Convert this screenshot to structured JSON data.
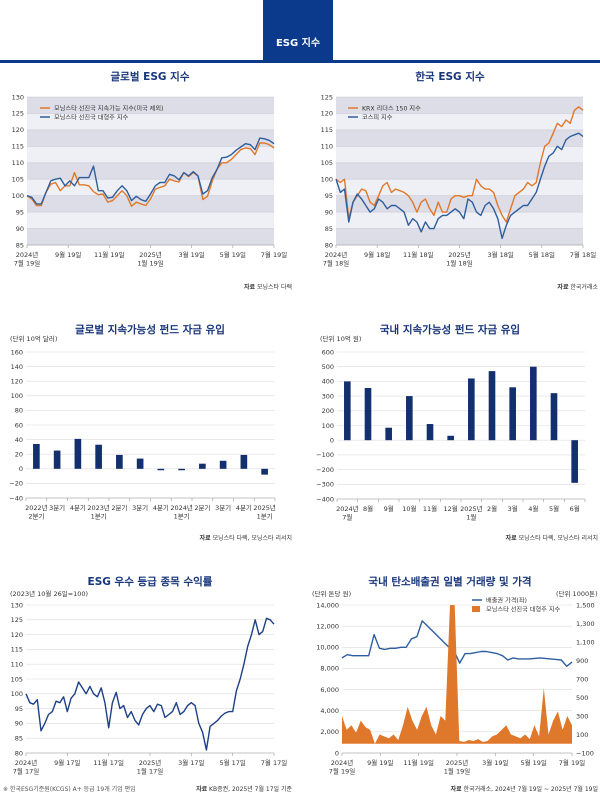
{
  "header": {
    "tab_label": "ESG 지수",
    "accent": "#0b3a8c"
  },
  "chart_data": [
    {
      "type": "line",
      "title": "글로벌 ESG 지수",
      "ylim": [
        85,
        130
      ],
      "ystep": 5,
      "x_ticks": [
        "2024년|7월 19일",
        "9월 19일",
        "11월 19일",
        "2025년|1월 19일",
        "3월 19일",
        "5월 19일",
        "7월 19일"
      ],
      "series": [
        {
          "name": "모닝스타 선진국 지속가능 지수(미국 제외)",
          "color": "#e0782b",
          "values": [
            100,
            99,
            97,
            97,
            101,
            103.5,
            104,
            101.5,
            103,
            103,
            107,
            103.3,
            103.3,
            103,
            101.2,
            100.3,
            100.5,
            98,
            98.5,
            100,
            101.5,
            100,
            96.8,
            98,
            97.5,
            97,
            99,
            102,
            102.5,
            103,
            105,
            104.5,
            104.2,
            107,
            105.8,
            107,
            106,
            98.8,
            99.8,
            104.5,
            108,
            110,
            110,
            111,
            112.5,
            114,
            114.5,
            114.3,
            112.5,
            116,
            116,
            115.5,
            114.5
          ]
        },
        {
          "name": "모닝스타 선진국 대형주 지수",
          "color": "#2f5e9e",
          "values": [
            100,
            99.5,
            97.5,
            97.5,
            101,
            104.5,
            105,
            105.3,
            103,
            104.5,
            103,
            105.5,
            105.5,
            105.5,
            109,
            101.5,
            101.5,
            99.3,
            99.5,
            101.5,
            103,
            101.5,
            98.5,
            99.8,
            98.8,
            98.3,
            100.5,
            103,
            104,
            104,
            106.5,
            106,
            104.8,
            107,
            106,
            107.3,
            106,
            100.5,
            101.5,
            105.5,
            108,
            111.5,
            111.7,
            112.5,
            113.8,
            114.8,
            115.8,
            115.5,
            114,
            117.5,
            117.3,
            116.8,
            115.8
          ]
        }
      ],
      "source_label": "자료",
      "source": "모닝스타 다렉"
    },
    {
      "type": "line",
      "title": "한국 ESG 지수",
      "ylim": [
        80,
        125
      ],
      "ystep": 5,
      "x_ticks": [
        "2024년|7월 18일",
        "9월 18일",
        "11월 18일",
        "2025년|1월 18일",
        "3월 18일",
        "5월 18일",
        "7월 18일"
      ],
      "series": [
        {
          "name": "KRX 리더스 150 지수",
          "color": "#e0782b",
          "values": [
            100,
            99,
            100,
            88,
            93,
            95,
            97,
            96.5,
            93,
            92,
            95,
            98,
            99,
            96,
            97,
            96.5,
            96,
            95,
            93,
            90,
            93,
            94,
            91,
            89,
            93,
            90,
            90,
            94,
            95,
            95,
            94.5,
            95,
            95,
            100,
            98,
            97,
            97,
            96,
            92,
            89,
            87,
            91,
            95,
            96,
            97,
            99,
            98,
            99,
            105,
            110,
            111,
            114,
            117,
            116,
            118,
            117,
            121,
            122,
            121
          ]
        },
        {
          "name": "코스피 지수",
          "color": "#2f5e9e",
          "values": [
            100,
            96,
            97,
            87,
            93,
            95.5,
            94,
            92,
            90,
            91,
            94,
            93,
            91,
            92,
            92,
            91,
            90,
            86,
            88,
            87,
            84,
            87,
            85,
            85,
            88,
            89,
            89,
            90,
            91,
            90,
            88,
            94,
            93,
            90,
            89,
            92,
            93,
            91,
            88,
            82,
            86,
            89,
            90,
            91,
            92,
            92,
            94,
            96,
            100,
            104,
            107,
            108,
            110,
            109,
            112,
            113,
            113.5,
            114,
            113
          ]
        }
      ],
      "source_label": "자료",
      "source": "한국거래소"
    },
    {
      "type": "bar",
      "title": "글로벌 지속가능성 펀드 자금 유입",
      "unit": "(단위 10억 달러)",
      "ylim": [
        -40,
        160
      ],
      "ystep": 20,
      "categories": [
        "2022년|2분기",
        "3분기",
        "4분기",
        "2023년|1분기",
        "2분기",
        "3분기",
        "4분기",
        "2024년|1분기",
        "2분기",
        "3분기",
        "4분기",
        "2025년|1분기"
      ],
      "values": [
        34,
        25,
        41,
        33,
        19,
        14,
        -2,
        -2,
        7,
        11,
        19,
        -8
      ],
      "color": "#12306e",
      "source_label": "자료",
      "source": "모닝스타 다렉, 모닝스타 리서치"
    },
    {
      "type": "bar",
      "title": "국내 지속가능성 펀드 자금 유입",
      "unit": "(단위 10억 원)",
      "ylim": [
        -400,
        600
      ],
      "ystep": 100,
      "categories": [
        "2024년|7월",
        "8월",
        "9월",
        "10월",
        "11월",
        "12월",
        "2025년|1월",
        "2월",
        "3월",
        "4월",
        "5월",
        "6월"
      ],
      "values": [
        400,
        355,
        85,
        300,
        110,
        30,
        420,
        470,
        360,
        500,
        320,
        -290
      ],
      "color": "#12306e",
      "source_label": "자료",
      "source": "모닝스타 다렉, 모닝스타 리서치"
    },
    {
      "type": "line",
      "title": "ESG 우수 등급 종목 수익률",
      "unit": "(2023년 10월 26일=100)",
      "ylim": [
        80,
        130
      ],
      "ystep": 5,
      "x_ticks": [
        "2024년|7월 17일",
        "9월 17일",
        "11월 17일",
        "2025년|1월 17일",
        "3월 17일",
        "5월 17일",
        "7월 17일"
      ],
      "series": [
        {
          "name": "ESG 우수 등급 종목",
          "color": "#1d3f86",
          "values": [
            100,
            97,
            96.5,
            98,
            87.5,
            90,
            93,
            94,
            97.5,
            97,
            99,
            94,
            98.5,
            100,
            104,
            102,
            100,
            102.5,
            100,
            99,
            102,
            97,
            88.5,
            97,
            100.5,
            95,
            96,
            92,
            94,
            91,
            89.5,
            93,
            95,
            96,
            94,
            96.5,
            96,
            92,
            93,
            94,
            97,
            93,
            94,
            96,
            97,
            96,
            90,
            87,
            81,
            89,
            90,
            91,
            92.5,
            93.5,
            94,
            94,
            101,
            105,
            110,
            116,
            120,
            125,
            120,
            121,
            125.5,
            125,
            123.5
          ]
        }
      ],
      "footnote": "※ 한국ESG기준원(KCGS) A+ 등급 19개 기업 편입",
      "source_label": "자료",
      "source": "KB증권, 2025년 7월 17일 기준"
    },
    {
      "type": "line+area",
      "title": "국내 탄소배출권 일별 거래량 및 가격",
      "unit_left": "(단위 톤당 원)",
      "unit_right": "(단위 1000톤)",
      "ylim": [
        0,
        14000
      ],
      "ystep": 2000,
      "ylim_right": [
        -100,
        1500
      ],
      "ystep_right": 200,
      "x_ticks": [
        "2024년|7월 19일",
        "9월 19일",
        "11월 19일",
        "2025년|1월 19일",
        "3월 19일",
        "5월 19일",
        "7월 19일"
      ],
      "series": [
        {
          "name": "배출권 가격(좌)",
          "color": "#2f5e9e",
          "axis": "left",
          "values": [
            9000,
            9300,
            9200,
            9200,
            9200,
            9200,
            11200,
            9900,
            9800,
            9900,
            9900,
            10000,
            10000,
            10800,
            11000,
            12500,
            12000,
            11500,
            11000,
            10500,
            10000,
            9600,
            8500,
            9400,
            9400,
            9500,
            9600,
            9600,
            9500,
            9400,
            9200,
            8800,
            9000,
            8900,
            8900,
            8900,
            8950,
            9000,
            8950,
            8900,
            8850,
            8800,
            8200,
            8600
          ]
        },
        {
          "name": "모닝스타 선진국 대형주 지수",
          "color": "#e0782b",
          "axis": "right",
          "values": [
            300,
            150,
            200,
            120,
            250,
            180,
            150,
            0,
            100,
            80,
            60,
            100,
            40,
            200,
            400,
            250,
            150,
            300,
            400,
            200,
            100,
            300,
            250,
            1500,
            1500,
            30,
            20,
            40,
            30,
            50,
            20,
            30,
            80,
            100,
            150,
            200,
            100,
            80,
            60,
            100,
            50,
            200,
            80,
            600,
            100,
            250,
            350,
            150,
            300,
            200
          ]
        }
      ],
      "source_label": "자료",
      "source": "한국거래소, 2024년 7월 19일 ~ 2025년 7월 19일"
    }
  ]
}
